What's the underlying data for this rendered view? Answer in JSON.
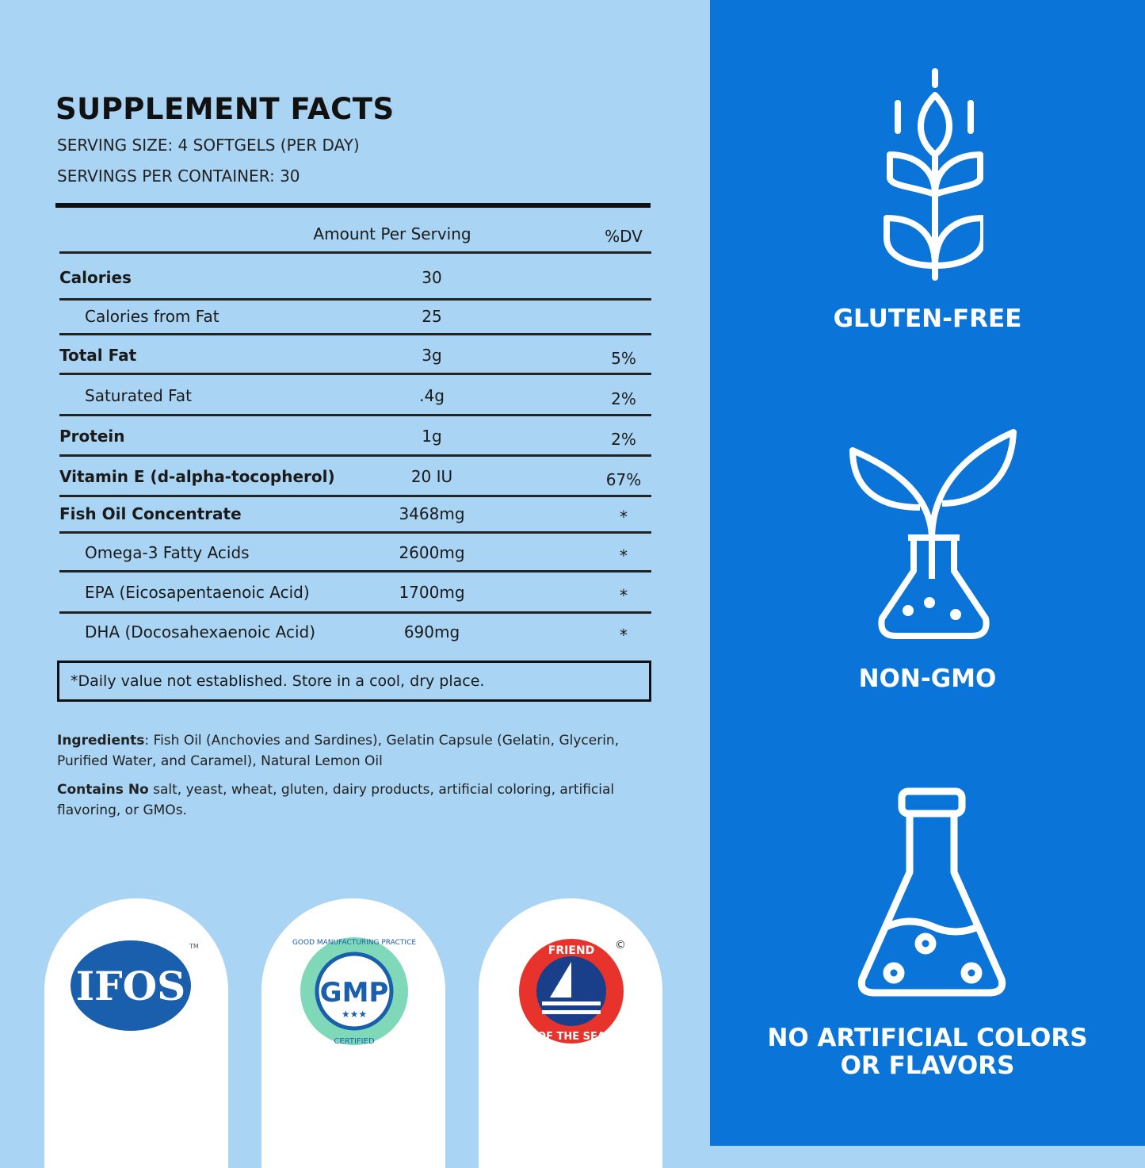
{
  "facts": {
    "title": "SUPPLEMENT FACTS",
    "serving_size": "SERVING SIZE: 4 SOFTGELS (PER DAY)",
    "servings_per_container": "SERVINGS PER CONTAINER: 30",
    "header": {
      "amount": "Amount Per Serving",
      "dv": "%DV"
    },
    "rows": [
      {
        "name": "Calories",
        "amount": "30",
        "dv": "",
        "bold": true
      },
      {
        "name": "Calories from Fat",
        "amount": "25",
        "dv": "",
        "bold": false
      },
      {
        "name": "Total Fat",
        "amount": "3g",
        "dv": "5%",
        "bold": true
      },
      {
        "name": "Saturated Fat",
        "amount": ".4g",
        "dv": "2%",
        "bold": false
      },
      {
        "name": "Protein",
        "amount": "1g",
        "dv": "2%",
        "bold": true
      },
      {
        "name": "Vitamin E (d-alpha-tocopherol)",
        "amount": "20 IU",
        "dv": "67%",
        "bold": true
      },
      {
        "name": "Fish Oil Concentrate",
        "amount": "3468mg",
        "dv": "*",
        "bold": true
      },
      {
        "name": "Omega-3 Fatty Acids",
        "amount": "2600mg",
        "dv": "*",
        "bold": false
      },
      {
        "name": "EPA (Eicosapentaenoic Acid)",
        "amount": "1700mg",
        "dv": "*",
        "bold": false
      },
      {
        "name": "DHA (Docosahexaenoic Acid)",
        "amount": "690mg",
        "dv": "*",
        "bold": false
      }
    ],
    "footnote": "*Daily value not established.  Store in a cool, dry place."
  },
  "ingredients": {
    "label": "Ingredients",
    "text": ": Fish Oil (Anchovies and Sardines), Gelatin Capsule (Gelatin, Glycerin, Purified Water, and Caramel), Natural Lemon Oil"
  },
  "contains": {
    "label": "Contains No",
    "text": " salt, yeast, wheat, gluten, dairy products, artificial coloring, artificial flavoring, or GMOs."
  },
  "certifications": [
    {
      "name": "IFOS",
      "mark": "TM"
    },
    {
      "name": "GMP",
      "ring": "GOOD MANUFACTURING PRACTICE",
      "bottom": "CERTIFIED"
    },
    {
      "name": "FRIEND OF THE SEA",
      "mark": "©"
    }
  ],
  "badges": [
    {
      "label": "GLUTEN-FREE",
      "icon": "wheat-icon"
    },
    {
      "label": "NON-GMO",
      "icon": "plant-flask-icon"
    },
    {
      "label": "NO ARTIFICIAL COLORS OR FLAVORS",
      "icon": "flask-icon"
    }
  ],
  "colors": {
    "left_bg": "#a9d4f3",
    "right_bg": "#0a74d9",
    "ifos": "#1a5fad",
    "gmp": "#7fd8b8",
    "fots": "#e8322c"
  }
}
